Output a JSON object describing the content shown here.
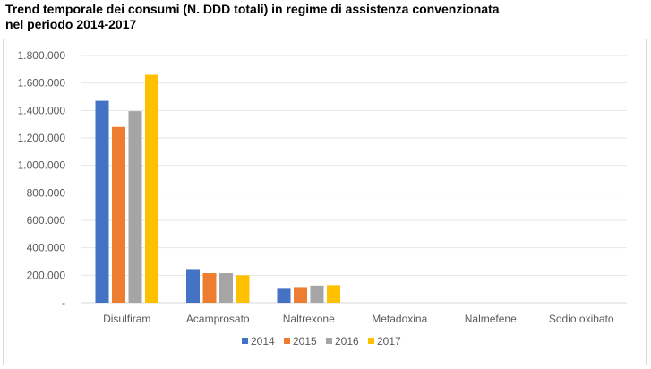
{
  "title_line1": "Trend temporale dei consumi (N. DDD totali) in regime di assistenza convenzionata",
  "title_line2": "nel periodo 2014-2017",
  "chart_data": {
    "type": "bar",
    "title": "Trend temporale dei consumi (N. DDD totali) in regime di assistenza convenzionata nel periodo 2014-2017",
    "categories": [
      "Disulfiram",
      "Acamprosato",
      "Naltrexone",
      "Metadoxina",
      "Nalmefene",
      "Sodio oxibato"
    ],
    "series": [
      {
        "name": "2014",
        "color": "#4472C4",
        "values": [
          1470000,
          245000,
          102000,
          0,
          0,
          0
        ]
      },
      {
        "name": "2015",
        "color": "#ED7D31",
        "values": [
          1280000,
          215000,
          108000,
          0,
          0,
          0
        ]
      },
      {
        "name": "2016",
        "color": "#A5A5A5",
        "values": [
          1395000,
          215000,
          125000,
          0,
          0,
          0
        ]
      },
      {
        "name": "2017",
        "color": "#FFC000",
        "values": [
          1660000,
          200000,
          128000,
          0,
          0,
          0
        ]
      }
    ],
    "ylim": [
      0,
      1800000
    ],
    "yticks": [
      "-",
      "200.000",
      "400.000",
      "600.000",
      "800.000",
      "1.000.000",
      "1.200.000",
      "1.400.000",
      "1.600.000",
      "1.800.000"
    ],
    "grid": true,
    "legend_position": "bottom"
  }
}
